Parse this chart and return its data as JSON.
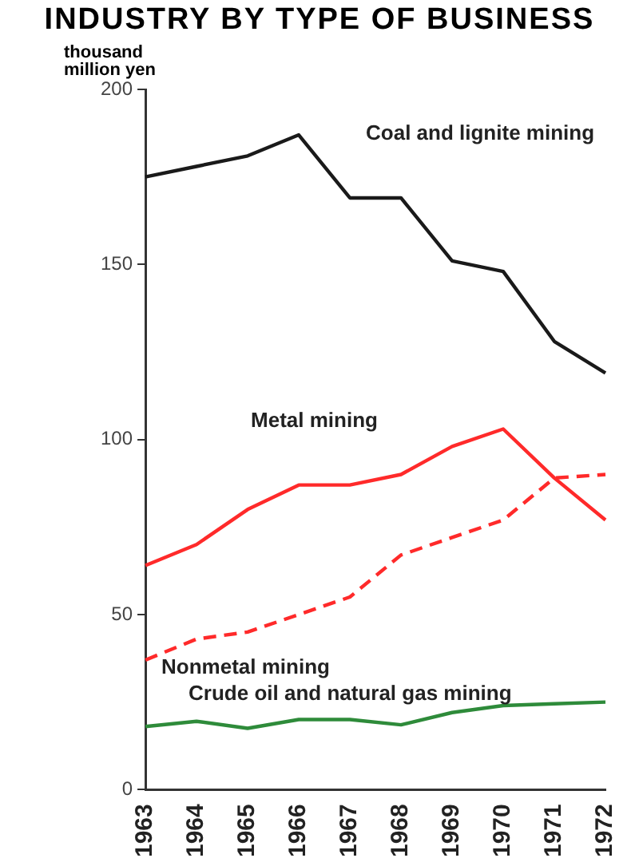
{
  "chart_data": {
    "type": "line",
    "title": "INDUSTRY BY TYPE OF BUSINESS",
    "ylabel": "thousand million yen",
    "categories": [
      "1963",
      "1964",
      "1965",
      "1966",
      "1967",
      "1968",
      "1969",
      "1970",
      "1971",
      "1972"
    ],
    "series": [
      {
        "name": "Coal and lignite mining",
        "color": "#1a1a1a",
        "values": [
          175,
          178,
          181,
          187,
          169,
          169,
          151,
          148,
          128,
          119
        ]
      },
      {
        "name": "Metal mining",
        "color": "#ff2a2a",
        "values": [
          64,
          70,
          80,
          87,
          87,
          90,
          98,
          103,
          89,
          77
        ]
      },
      {
        "name": "Nonmetal mining",
        "color": "#ff2a2a",
        "line_style": "dashed",
        "values": [
          37,
          43,
          45,
          50,
          55,
          67,
          72,
          77,
          89,
          90
        ]
      },
      {
        "name": "Crude oil and natural gas mining",
        "color": "#2e8b3a",
        "values": [
          18,
          19.5,
          17.5,
          20,
          20,
          18.5,
          22,
          24,
          24.5,
          25
        ]
      }
    ],
    "ylim": [
      0,
      200
    ],
    "yticks": [
      0,
      50,
      100,
      150,
      200
    ],
    "grid": false,
    "legend": false,
    "marker": "none"
  }
}
